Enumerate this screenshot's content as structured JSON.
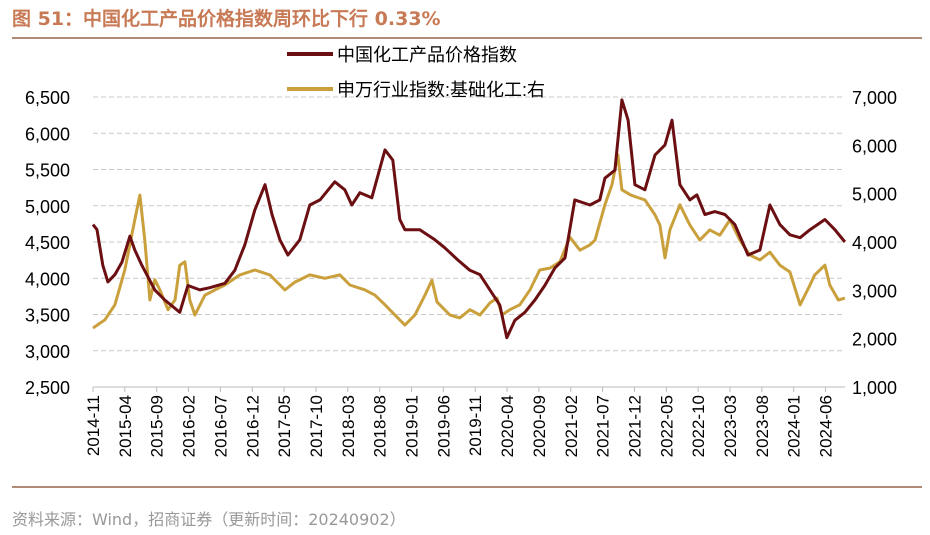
{
  "title": "图 51：中国化工产品价格指数周环比下行 0.33%",
  "source": "资料来源：Wind，招商证券（更新时间：20240902）",
  "chart_data": {
    "type": "line",
    "title": "图 51：中国化工产品价格指数周环比下行 0.33%",
    "legend_placement": "top-center",
    "grid": true,
    "colors": {
      "title": "#c77a55",
      "rule": "#b08a74",
      "grid": "#c8c8c8"
    },
    "x_ticks": [
      "2014-11",
      "2015-04",
      "2015-09",
      "2016-02",
      "2016-07",
      "2016-12",
      "2017-05",
      "2017-10",
      "2018-03",
      "2018-08",
      "2019-01",
      "2019-06",
      "2019-11",
      "2020-04",
      "2020-09",
      "2021-02",
      "2021-07",
      "2021-12",
      "2022-05",
      "2022-10",
      "2023-03",
      "2023-08",
      "2024-01",
      "2024-06"
    ],
    "y_left": {
      "ylim": [
        2500,
        6500
      ],
      "ticks": [
        "2,500",
        "3,000",
        "3,500",
        "4,000",
        "4,500",
        "5,000",
        "5,500",
        "6,000",
        "6,500"
      ]
    },
    "y_right": {
      "ylim": [
        1000,
        7000
      ],
      "ticks": [
        "1,000",
        "2,000",
        "3,000",
        "4,000",
        "5,000",
        "6,000",
        "7,000"
      ]
    },
    "series": [
      {
        "name": "中国化工产品价格指数",
        "axis": "left",
        "color": "#6b0f12",
        "points": [
          [
            "2014-11-01",
            4740
          ],
          [
            "2014-11-20",
            4670
          ],
          [
            "2014-12-17",
            4180
          ],
          [
            "2015-01-11",
            3950
          ],
          [
            "2015-02-14",
            4050
          ],
          [
            "2015-03-17",
            4220
          ],
          [
            "2015-04-25",
            4580
          ],
          [
            "2015-05-18",
            4390
          ],
          [
            "2015-06-21",
            4180
          ],
          [
            "2015-08-22",
            3840
          ],
          [
            "2015-10-09",
            3700
          ],
          [
            "2015-12-20",
            3530
          ],
          [
            "2016-01-28",
            3900
          ],
          [
            "2016-03-24",
            3840
          ],
          [
            "2016-05-11",
            3870
          ],
          [
            "2016-07-22",
            3930
          ],
          [
            "2016-09-09",
            4110
          ],
          [
            "2016-10-26",
            4460
          ],
          [
            "2016-12-13",
            4940
          ],
          [
            "2017-02-01",
            5290
          ],
          [
            "2017-03-04",
            4880
          ],
          [
            "2017-04-11",
            4530
          ],
          [
            "2017-05-19",
            4320
          ],
          [
            "2017-07-15",
            4530
          ],
          [
            "2017-09-02",
            5010
          ],
          [
            "2017-10-20",
            5080
          ],
          [
            "2017-12-30",
            5330
          ],
          [
            "2018-02-17",
            5220
          ],
          [
            "2018-03-20",
            5010
          ],
          [
            "2018-04-28",
            5180
          ],
          [
            "2018-06-24",
            5110
          ],
          [
            "2018-08-26",
            5770
          ],
          [
            "2018-10-03",
            5630
          ],
          [
            "2018-11-06",
            4810
          ],
          [
            "2018-11-30",
            4670
          ],
          [
            "2019-02-10",
            4670
          ],
          [
            "2019-04-21",
            4530
          ],
          [
            "2019-06-08",
            4420
          ],
          [
            "2019-08-10",
            4250
          ],
          [
            "2019-10-06",
            4110
          ],
          [
            "2019-11-23",
            4050
          ],
          [
            "2020-01-10",
            3840
          ],
          [
            "2020-02-27",
            3630
          ],
          [
            "2020-03-30",
            3180
          ],
          [
            "2020-05-08",
            3420
          ],
          [
            "2020-06-25",
            3530
          ],
          [
            "2020-08-12",
            3700
          ],
          [
            "2020-09-29",
            3900
          ],
          [
            "2020-11-16",
            4140
          ],
          [
            "2021-01-04",
            4280
          ],
          [
            "2021-02-20",
            5080
          ],
          [
            "2021-05-01",
            5010
          ],
          [
            "2021-06-18",
            5080
          ],
          [
            "2021-07-12",
            5380
          ],
          [
            "2021-08-29",
            5490
          ],
          [
            "2021-10-02",
            6460
          ],
          [
            "2021-10-31",
            6180
          ],
          [
            "2021-12-03",
            5290
          ],
          [
            "2022-01-20",
            5220
          ],
          [
            "2022-03-08",
            5700
          ],
          [
            "2022-04-25",
            5840
          ],
          [
            "2022-05-28",
            6180
          ],
          [
            "2022-07-05",
            5290
          ],
          [
            "2022-08-22",
            5080
          ],
          [
            "2022-09-25",
            5150
          ],
          [
            "2022-11-03",
            4880
          ],
          [
            "2022-12-20",
            4920
          ],
          [
            "2023-02-07",
            4880
          ],
          [
            "2023-03-24",
            4740
          ],
          [
            "2023-05-26",
            4320
          ],
          [
            "2023-07-22",
            4390
          ],
          [
            "2023-09-09",
            5010
          ],
          [
            "2023-10-26",
            4740
          ],
          [
            "2023-12-13",
            4600
          ],
          [
            "2024-01-31",
            4560
          ],
          [
            "2024-03-18",
            4670
          ],
          [
            "2024-05-28",
            4810
          ],
          [
            "2024-07-15",
            4670
          ],
          [
            "2024-09-02",
            4500
          ]
        ]
      },
      {
        "name": "申万行业指数:基础化工:右",
        "axis": "right",
        "color": "#c9a03c",
        "points": [
          [
            "2014-11-01",
            2220
          ],
          [
            "2014-12-27",
            2390
          ],
          [
            "2015-02-14",
            2700
          ],
          [
            "2015-04-01",
            3420
          ],
          [
            "2015-05-18",
            4460
          ],
          [
            "2015-06-12",
            4970
          ],
          [
            "2015-07-05",
            4040
          ],
          [
            "2015-07-29",
            2800
          ],
          [
            "2015-08-22",
            3220
          ],
          [
            "2015-09-16",
            3010
          ],
          [
            "2015-10-24",
            2600
          ],
          [
            "2015-11-27",
            2800
          ],
          [
            "2015-12-20",
            3520
          ],
          [
            "2016-01-14",
            3590
          ],
          [
            "2016-02-07",
            2800
          ],
          [
            "2016-03-01",
            2490
          ],
          [
            "2016-04-18",
            2900
          ],
          [
            "2016-06-05",
            3010
          ],
          [
            "2016-07-22",
            3110
          ],
          [
            "2016-10-03",
            3320
          ],
          [
            "2016-12-13",
            3420
          ],
          [
            "2017-02-24",
            3320
          ],
          [
            "2017-05-05",
            3010
          ],
          [
            "2017-06-22",
            3170
          ],
          [
            "2017-09-02",
            3320
          ],
          [
            "2017-11-13",
            3250
          ],
          [
            "2018-01-24",
            3320
          ],
          [
            "2018-03-11",
            3110
          ],
          [
            "2018-05-22",
            3010
          ],
          [
            "2018-07-09",
            2900
          ],
          [
            "2018-08-26",
            2700
          ],
          [
            "2018-10-13",
            2490
          ],
          [
            "2018-11-30",
            2280
          ],
          [
            "2019-01-17",
            2490
          ],
          [
            "2019-03-04",
            2900
          ],
          [
            "2019-04-07",
            3210
          ],
          [
            "2019-05-01",
            2760
          ],
          [
            "2019-07-02",
            2490
          ],
          [
            "2019-08-19",
            2430
          ],
          [
            "2019-10-06",
            2600
          ],
          [
            "2019-11-23",
            2490
          ],
          [
            "2020-01-10",
            2740
          ],
          [
            "2020-02-13",
            2840
          ],
          [
            "2020-03-07",
            2490
          ],
          [
            "2020-04-14",
            2600
          ],
          [
            "2020-06-01",
            2700
          ],
          [
            "2020-07-19",
            3010
          ],
          [
            "2020-09-05",
            3420
          ],
          [
            "2020-10-23",
            3460
          ],
          [
            "2020-12-10",
            3590
          ],
          [
            "2021-01-27",
            4100
          ],
          [
            "2021-03-14",
            3830
          ],
          [
            "2021-05-01",
            3940
          ],
          [
            "2021-05-25",
            4040
          ],
          [
            "2021-07-12",
            4770
          ],
          [
            "2021-08-15",
            5180
          ],
          [
            "2021-09-13",
            5800
          ],
          [
            "2021-10-02",
            5080
          ],
          [
            "2021-11-14",
            4970
          ],
          [
            "2022-01-20",
            4870
          ],
          [
            "2022-03-08",
            4560
          ],
          [
            "2022-04-01",
            4350
          ],
          [
            "2022-04-25",
            3670
          ],
          [
            "2022-05-18",
            4250
          ],
          [
            "2022-07-05",
            4770
          ],
          [
            "2022-08-22",
            4350
          ],
          [
            "2022-10-09",
            4040
          ],
          [
            "2022-11-26",
            4250
          ],
          [
            "2023-01-13",
            4140
          ],
          [
            "2023-03-01",
            4460
          ],
          [
            "2023-04-17",
            4040
          ],
          [
            "2023-06-04",
            3730
          ],
          [
            "2023-07-22",
            3630
          ],
          [
            "2023-09-09",
            3790
          ],
          [
            "2023-10-26",
            3520
          ],
          [
            "2023-12-13",
            3380
          ],
          [
            "2024-01-31",
            2700
          ],
          [
            "2024-03-18",
            3110
          ],
          [
            "2024-04-10",
            3320
          ],
          [
            "2024-05-28",
            3520
          ],
          [
            "2024-06-21",
            3110
          ],
          [
            "2024-07-31",
            2800
          ],
          [
            "2024-09-02",
            2840
          ]
        ]
      }
    ]
  }
}
